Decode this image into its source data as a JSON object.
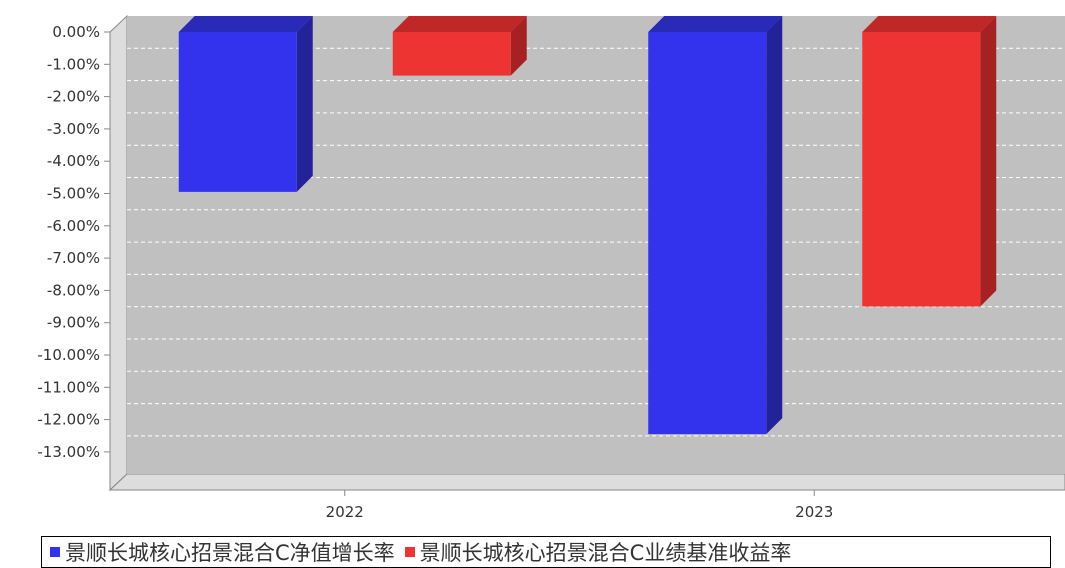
{
  "chart_data": {
    "type": "bar",
    "categories": [
      "2022",
      "2023"
    ],
    "series": [
      {
        "name": "景顺长城核心招景混合C净值增长率",
        "color": "#3333ee",
        "values": [
          -4.95,
          -12.45
        ]
      },
      {
        "name": "景顺长城核心招景混合C业绩基准收益率",
        "color": "#ee3333",
        "values": [
          -1.35,
          -8.5
        ]
      }
    ],
    "ylim": [
      -14,
      0
    ],
    "yticks": [
      "0.00%",
      "-1.00%",
      "-2.00%",
      "-3.00%",
      "-4.00%",
      "-5.00%",
      "-6.00%",
      "-7.00%",
      "-8.00%",
      "-9.00%",
      "-10.00%",
      "-11.00%",
      "-12.00%",
      "-13.00%"
    ],
    "ytick_values": [
      0,
      -1,
      -2,
      -3,
      -4,
      -5,
      -6,
      -7,
      -8,
      -9,
      -10,
      -11,
      -12,
      -13
    ],
    "grid": true,
    "legend_position": "bottom",
    "title": "",
    "xlabel": "",
    "ylabel": ""
  }
}
